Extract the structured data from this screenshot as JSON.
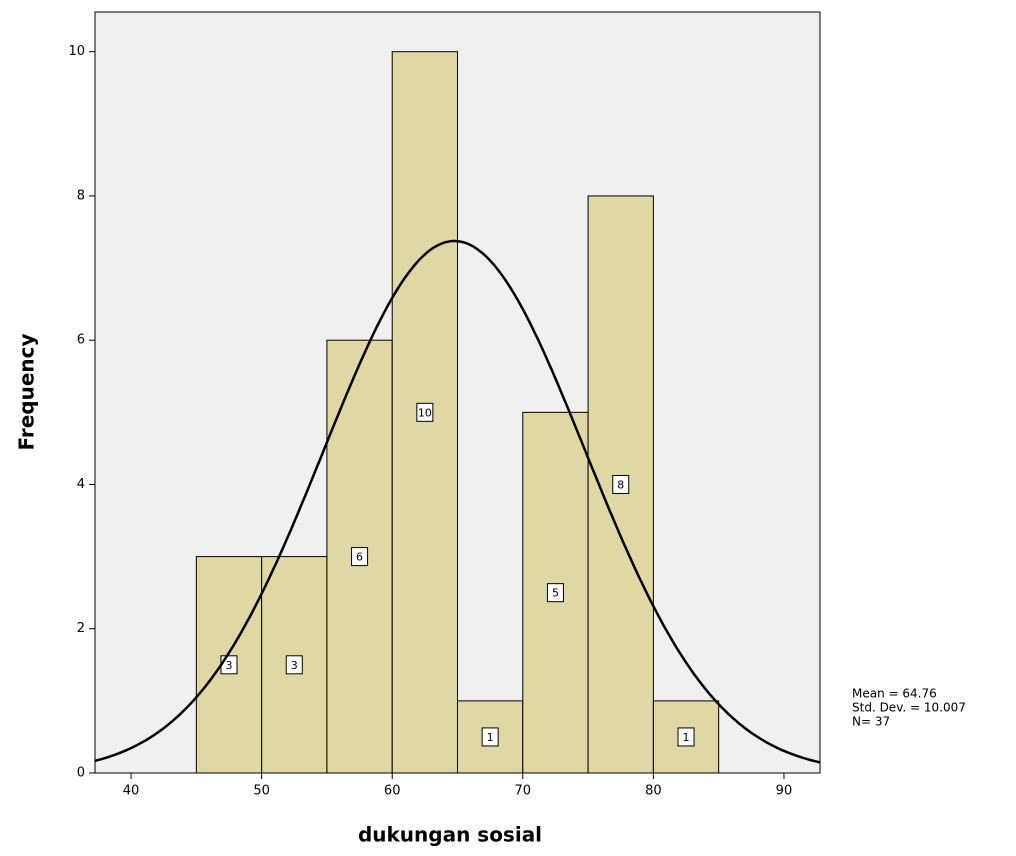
{
  "chart_data": {
    "type": "histogram",
    "x_label": "dukungan sosial",
    "y_label": "Frequency",
    "bins": [
      45,
      50,
      55,
      60,
      65,
      70,
      75,
      80,
      85
    ],
    "values": [
      3,
      3,
      6,
      10,
      1,
      5,
      8,
      1
    ],
    "color": "#d9d08c",
    "xlim": [
      37.24,
      92.76
    ],
    "xticks": [
      40,
      50,
      60,
      70,
      80,
      90
    ],
    "ylim": [
      0,
      10.55
    ],
    "yticks": [
      0,
      2,
      4,
      6,
      8,
      10
    ],
    "stats": [
      {
        "label": "Mean = 64.76",
        "value": 64.76
      },
      {
        "label": "Std. Dev. = 10.007",
        "value": 10.007
      },
      {
        "label": "N= 37",
        "value": 37
      }
    ]
  }
}
